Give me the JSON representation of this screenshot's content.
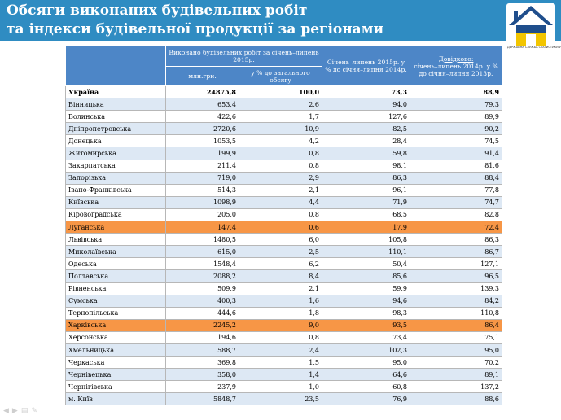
{
  "slide": {
    "title_line1": "Обсяги виконаних будівельних робіт",
    "title_line2": "та індекси будівельної продукції  за регіонами",
    "header_color": "#2f8cc2",
    "logo_caption": "ДЕРЖАВНА СЛУЖБА СТАТИСТИКИ УКРАЇНИ",
    "logo_icon": "house-logo-icon"
  },
  "table": {
    "header_group": "Виконано будівельних робіт за січень–липень 2015р.",
    "col_mln": "млн.грн.",
    "col_pct": "у % до загального обсягу",
    "col_index": "Січень–липень 2015р. у % до січня–липня 2014р.",
    "col_ref_label": "Довідково:",
    "col_ref": "січень–липень 2014р. у % до січня–липня 2013р.",
    "highlight_color": "#f79646",
    "rows": [
      {
        "region": "Україна",
        "mln": "24875,8",
        "pct": "100,0",
        "idx": "73,3",
        "ref": "88,9",
        "style": "total"
      },
      {
        "region": "Вінницька",
        "mln": "653,4",
        "pct": "2,6",
        "idx": "94,0",
        "ref": "79,3",
        "style": "odd"
      },
      {
        "region": "Волинська",
        "mln": "422,6",
        "pct": "1,7",
        "idx": "127,6",
        "ref": "89,9",
        "style": "even"
      },
      {
        "region": "Дніпропетровська",
        "mln": "2720,6",
        "pct": "10,9",
        "idx": "82,5",
        "ref": "90,2",
        "style": "odd"
      },
      {
        "region": "Донецька",
        "mln": "1053,5",
        "pct": "4,2",
        "idx": "28,4",
        "ref": "74,5",
        "style": "even"
      },
      {
        "region": "Житомирська",
        "mln": "199,9",
        "pct": "0,8",
        "idx": "59,8",
        "ref": "91,4",
        "style": "odd"
      },
      {
        "region": "Закарпатська",
        "mln": "211,4",
        "pct": "0,8",
        "idx": "98,1",
        "ref": "81,6",
        "style": "even"
      },
      {
        "region": "Запорізька",
        "mln": "719,0",
        "pct": "2,9",
        "idx": "86,3",
        "ref": "88,4",
        "style": "odd"
      },
      {
        "region": "Івано-Франківська",
        "mln": "514,3",
        "pct": "2,1",
        "idx": "96,1",
        "ref": "77,8",
        "style": "even"
      },
      {
        "region": "Київська",
        "mln": "1098,9",
        "pct": "4,4",
        "idx": "71,9",
        "ref": "74,7",
        "style": "odd"
      },
      {
        "region": "Кіровоградська",
        "mln": "205,0",
        "pct": "0,8",
        "idx": "68,5",
        "ref": "82,8",
        "style": "even"
      },
      {
        "region": "Луганська",
        "mln": "147,4",
        "pct": "0,6",
        "idx": "17,9",
        "ref": "72,4",
        "style": "hl"
      },
      {
        "region": "Львівська",
        "mln": "1480,5",
        "pct": "6,0",
        "idx": "105,8",
        "ref": "86,3",
        "style": "even"
      },
      {
        "region": "Миколаївська",
        "mln": "615,0",
        "pct": "2,5",
        "idx": "110,1",
        "ref": "86,7",
        "style": "odd"
      },
      {
        "region": "Одеська",
        "mln": "1548,4",
        "pct": "6,2",
        "idx": "50,4",
        "ref": "127,1",
        "style": "even"
      },
      {
        "region": "Полтавська",
        "mln": "2088,2",
        "pct": "8,4",
        "idx": "85,6",
        "ref": "96,5",
        "style": "odd"
      },
      {
        "region": "Рівненська",
        "mln": "509,9",
        "pct": "2,1",
        "idx": "59,9",
        "ref": "139,3",
        "style": "even"
      },
      {
        "region": "Сумська",
        "mln": "400,3",
        "pct": "1,6",
        "idx": "94,6",
        "ref": "84,2",
        "style": "odd"
      },
      {
        "region": "Тернопільська",
        "mln": "444,6",
        "pct": "1,8",
        "idx": "98,3",
        "ref": "110,8",
        "style": "even"
      },
      {
        "region": "Харківська",
        "mln": "2245,2",
        "pct": "9,0",
        "idx": "93,5",
        "ref": "86,4",
        "style": "hl"
      },
      {
        "region": "Херсонська",
        "mln": "194,6",
        "pct": "0,8",
        "idx": "73,4",
        "ref": "75,1",
        "style": "even"
      },
      {
        "region": "Хмельницька",
        "mln": "588,7",
        "pct": "2,4",
        "idx": "102,3",
        "ref": "95,0",
        "style": "odd"
      },
      {
        "region": "Черкаська",
        "mln": "369,8",
        "pct": "1,5",
        "idx": "95,0",
        "ref": "70,2",
        "style": "even"
      },
      {
        "region": "Чернівецька",
        "mln": "358,0",
        "pct": "1,4",
        "idx": "64,6",
        "ref": "89,1",
        "style": "odd"
      },
      {
        "region": "Чернігівська",
        "mln": "237,9",
        "pct": "1,0",
        "idx": "60,8",
        "ref": "137,2",
        "style": "even"
      },
      {
        "region": "м. Київ",
        "mln": "5848,7",
        "pct": "23,5",
        "idx": "76,9",
        "ref": "88,6",
        "style": "odd"
      }
    ]
  },
  "slide_controls": [
    "prev-icon",
    "next-icon",
    "menu-icon",
    "pen-icon"
  ]
}
